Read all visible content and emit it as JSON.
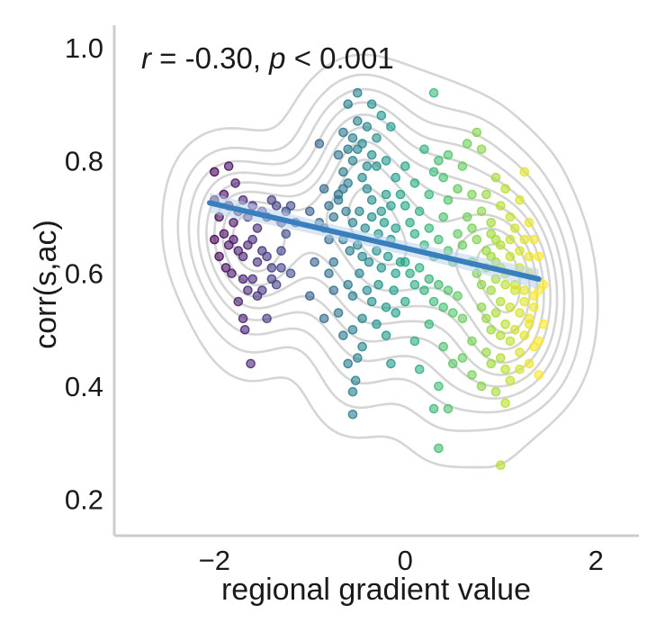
{
  "chart_data": {
    "type": "scatter",
    "xlabel": "regional gradient value",
    "ylabel": "corr(s,ac)",
    "xlim": [
      -3.05,
      2.45
    ],
    "ylim": [
      0.135,
      1.04
    ],
    "xticks": [
      -2,
      0,
      2
    ],
    "xtick_labels": [
      "−2",
      "0",
      "2"
    ],
    "yticks": [
      0.2,
      0.4,
      0.6,
      0.8,
      1.0
    ],
    "ytick_labels": [
      "0.2",
      "0.4",
      "0.6",
      "0.8",
      "1.0"
    ],
    "grid": false,
    "spines": [
      "left",
      "bottom"
    ],
    "annotation": {
      "r_symbol": "r",
      "r_text": " = -0.30, ",
      "p_symbol": "p",
      "p_text": " < 0.001"
    },
    "colormap": "viridis",
    "point_color_scale": [
      -2.0,
      1.4
    ],
    "point_alpha": 0.6,
    "regression_line": {
      "color": "#3a7fbd",
      "x": [
        -2.05,
        1.4
      ],
      "y": [
        0.725,
        0.59
      ],
      "ci_band_color": "#b9d3ec"
    },
    "kde_contour_color": "#d5d5d5",
    "points": [
      [
        -2.0,
        0.73
      ],
      [
        -1.95,
        0.7
      ],
      [
        -1.9,
        0.74
      ],
      [
        -1.85,
        0.72
      ],
      [
        -1.8,
        0.69
      ],
      [
        -1.75,
        0.71
      ],
      [
        -1.7,
        0.73
      ],
      [
        -1.65,
        0.7
      ],
      [
        -1.6,
        0.72
      ],
      [
        -1.55,
        0.68
      ],
      [
        -1.5,
        0.71
      ],
      [
        -1.45,
        0.7
      ],
      [
        -1.4,
        0.73
      ],
      [
        -1.35,
        0.72
      ],
      [
        -1.3,
        0.69
      ],
      [
        -1.25,
        0.71
      ],
      [
        -1.9,
        0.67
      ],
      [
        -1.85,
        0.65
      ],
      [
        -1.8,
        0.66
      ],
      [
        -1.75,
        0.64
      ],
      [
        -1.7,
        0.63
      ],
      [
        -1.65,
        0.65
      ],
      [
        -1.6,
        0.66
      ],
      [
        -1.55,
        0.62
      ],
      [
        -1.5,
        0.64
      ],
      [
        -1.45,
        0.63
      ],
      [
        -1.4,
        0.61
      ],
      [
        -1.95,
        0.63
      ],
      [
        -2.0,
        0.66
      ],
      [
        -1.88,
        0.61
      ],
      [
        -1.82,
        0.6
      ],
      [
        -1.7,
        0.59
      ],
      [
        -1.65,
        0.57
      ],
      [
        -1.6,
        0.59
      ],
      [
        -1.55,
        0.56
      ],
      [
        -1.75,
        0.55
      ],
      [
        -1.7,
        0.52
      ],
      [
        -1.68,
        0.5
      ],
      [
        -1.62,
        0.44
      ],
      [
        -1.45,
        0.52
      ],
      [
        -1.4,
        0.59
      ],
      [
        -1.3,
        0.61
      ],
      [
        -1.5,
        0.57
      ],
      [
        -2.0,
        0.78
      ],
      [
        -1.85,
        0.79
      ],
      [
        -1.78,
        0.76
      ],
      [
        -1.2,
        0.72
      ],
      [
        -1.15,
        0.69
      ],
      [
        -1.25,
        0.67
      ],
      [
        -1.35,
        0.58
      ],
      [
        -1.3,
        0.64
      ],
      [
        -1.2,
        0.6
      ],
      [
        -1.0,
        0.56
      ],
      [
        -0.95,
        0.62
      ],
      [
        -0.9,
        0.83
      ],
      [
        -0.85,
        0.68
      ],
      [
        -0.8,
        0.72
      ],
      [
        -0.75,
        0.7
      ],
      [
        -0.7,
        0.74
      ],
      [
        -0.65,
        0.78
      ],
      [
        -0.6,
        0.76
      ],
      [
        -0.55,
        0.8
      ],
      [
        -0.5,
        0.82
      ],
      [
        -0.45,
        0.77
      ],
      [
        -0.4,
        0.75
      ],
      [
        -0.35,
        0.73
      ],
      [
        -0.3,
        0.79
      ],
      [
        -0.25,
        0.71
      ],
      [
        -0.2,
        0.74
      ],
      [
        -0.15,
        0.72
      ],
      [
        -0.7,
        0.81
      ],
      [
        -0.65,
        0.85
      ],
      [
        -0.6,
        0.82
      ],
      [
        -0.55,
        0.84
      ],
      [
        -0.5,
        0.87
      ],
      [
        -0.45,
        0.83
      ],
      [
        -0.4,
        0.86
      ],
      [
        -0.35,
        0.81
      ],
      [
        -0.3,
        0.84
      ],
      [
        -0.25,
        0.88
      ],
      [
        -0.6,
        0.9
      ],
      [
        -0.5,
        0.92
      ],
      [
        -0.35,
        0.9
      ],
      [
        -0.15,
        0.86
      ],
      [
        -0.7,
        0.73
      ],
      [
        -0.62,
        0.71
      ],
      [
        -0.55,
        0.69
      ],
      [
        -0.48,
        0.71
      ],
      [
        -0.42,
        0.68
      ],
      [
        -0.35,
        0.7
      ],
      [
        -0.28,
        0.67
      ],
      [
        -0.22,
        0.69
      ],
      [
        -0.15,
        0.66
      ],
      [
        -0.1,
        0.68
      ],
      [
        -0.65,
        0.66
      ],
      [
        -0.58,
        0.64
      ],
      [
        -0.5,
        0.65
      ],
      [
        -0.45,
        0.63
      ],
      [
        -0.38,
        0.62
      ],
      [
        -0.3,
        0.64
      ],
      [
        -0.25,
        0.61
      ],
      [
        -0.18,
        0.63
      ],
      [
        -0.1,
        0.6
      ],
      [
        -0.05,
        0.62
      ],
      [
        -0.6,
        0.58
      ],
      [
        -0.55,
        0.56
      ],
      [
        -0.48,
        0.6
      ],
      [
        -0.4,
        0.57
      ],
      [
        -0.35,
        0.55
      ],
      [
        -0.28,
        0.58
      ],
      [
        -0.2,
        0.54
      ],
      [
        -0.12,
        0.57
      ],
      [
        -0.8,
        0.6
      ],
      [
        -0.75,
        0.57
      ],
      [
        -0.85,
        0.52
      ],
      [
        -0.7,
        0.53
      ],
      [
        -0.65,
        0.49
      ],
      [
        -0.55,
        0.5
      ],
      [
        -0.45,
        0.47
      ],
      [
        -0.5,
        0.45
      ],
      [
        -0.6,
        0.44
      ],
      [
        -0.52,
        0.41
      ],
      [
        -0.55,
        0.39
      ],
      [
        -0.45,
        0.52
      ],
      [
        -0.3,
        0.51
      ],
      [
        -0.2,
        0.49
      ],
      [
        -0.1,
        0.53
      ],
      [
        0.0,
        0.55
      ],
      [
        -0.15,
        0.44
      ],
      [
        -0.55,
        0.35
      ],
      [
        0.0,
        0.72
      ],
      [
        0.05,
        0.69
      ],
      [
        0.1,
        0.67
      ],
      [
        0.15,
        0.71
      ],
      [
        0.2,
        0.65
      ],
      [
        0.25,
        0.68
      ],
      [
        0.3,
        0.63
      ],
      [
        0.35,
        0.66
      ],
      [
        0.4,
        0.7
      ],
      [
        0.45,
        0.64
      ],
      [
        0.5,
        0.62
      ],
      [
        0.55,
        0.67
      ],
      [
        0.6,
        0.65
      ],
      [
        0.0,
        0.62
      ],
      [
        0.05,
        0.6
      ],
      [
        0.1,
        0.58
      ],
      [
        0.15,
        0.61
      ],
      [
        0.2,
        0.57
      ],
      [
        0.25,
        0.59
      ],
      [
        0.3,
        0.55
      ],
      [
        0.35,
        0.58
      ],
      [
        0.4,
        0.54
      ],
      [
        0.45,
        0.57
      ],
      [
        0.5,
        0.53
      ],
      [
        0.55,
        0.56
      ],
      [
        0.6,
        0.52
      ],
      [
        0.0,
        0.79
      ],
      [
        0.1,
        0.76
      ],
      [
        0.2,
        0.82
      ],
      [
        0.3,
        0.78
      ],
      [
        0.35,
        0.8
      ],
      [
        0.4,
        0.77
      ],
      [
        0.45,
        0.81
      ],
      [
        0.3,
        0.92
      ],
      [
        0.65,
        0.83
      ],
      [
        0.75,
        0.85
      ],
      [
        0.8,
        0.82
      ],
      [
        0.6,
        0.79
      ],
      [
        0.7,
        0.74
      ],
      [
        0.1,
        0.48
      ],
      [
        0.25,
        0.51
      ],
      [
        0.4,
        0.47
      ],
      [
        0.5,
        0.44
      ],
      [
        0.35,
        0.4
      ],
      [
        0.3,
        0.36
      ],
      [
        0.35,
        0.29
      ],
      [
        0.45,
        0.36
      ],
      [
        0.15,
        0.43
      ],
      [
        0.6,
        0.45
      ],
      [
        0.7,
        0.48
      ],
      [
        0.65,
        0.7
      ],
      [
        0.7,
        0.68
      ],
      [
        0.75,
        0.66
      ],
      [
        0.8,
        0.71
      ],
      [
        0.85,
        0.64
      ],
      [
        0.9,
        0.67
      ],
      [
        0.95,
        0.62
      ],
      [
        1.0,
        0.65
      ],
      [
        1.05,
        0.6
      ],
      [
        1.1,
        0.63
      ],
      [
        1.15,
        0.58
      ],
      [
        1.2,
        0.61
      ],
      [
        1.25,
        0.57
      ],
      [
        1.3,
        0.6
      ],
      [
        1.35,
        0.56
      ],
      [
        0.7,
        0.62
      ],
      [
        0.75,
        0.6
      ],
      [
        0.8,
        0.58
      ],
      [
        0.85,
        0.61
      ],
      [
        0.9,
        0.57
      ],
      [
        0.95,
        0.59
      ],
      [
        1.0,
        0.55
      ],
      [
        1.05,
        0.58
      ],
      [
        1.1,
        0.54
      ],
      [
        1.15,
        0.57
      ],
      [
        1.2,
        0.53
      ],
      [
        1.25,
        0.55
      ],
      [
        1.3,
        0.52
      ],
      [
        1.35,
        0.54
      ],
      [
        1.4,
        0.57
      ],
      [
        0.8,
        0.54
      ],
      [
        0.85,
        0.52
      ],
      [
        0.9,
        0.5
      ],
      [
        0.95,
        0.53
      ],
      [
        1.0,
        0.49
      ],
      [
        1.05,
        0.51
      ],
      [
        1.1,
        0.48
      ],
      [
        1.15,
        0.5
      ],
      [
        1.2,
        0.46
      ],
      [
        1.25,
        0.49
      ],
      [
        1.3,
        0.51
      ],
      [
        1.35,
        0.47
      ],
      [
        0.85,
        0.46
      ],
      [
        0.9,
        0.44
      ],
      [
        1.0,
        0.45
      ],
      [
        1.05,
        0.43
      ],
      [
        1.1,
        0.41
      ],
      [
        1.2,
        0.43
      ],
      [
        1.3,
        0.44
      ],
      [
        0.8,
        0.4
      ],
      [
        0.95,
        0.39
      ],
      [
        1.05,
        0.37
      ],
      [
        1.4,
        0.42
      ],
      [
        0.7,
        0.42
      ],
      [
        1.0,
        0.26
      ],
      [
        0.9,
        0.69
      ],
      [
        1.0,
        0.72
      ],
      [
        1.1,
        0.7
      ],
      [
        1.2,
        0.73
      ],
      [
        1.3,
        0.69
      ],
      [
        0.85,
        0.74
      ],
      [
        0.95,
        0.77
      ],
      [
        1.05,
        0.75
      ],
      [
        1.25,
        0.78
      ],
      [
        1.35,
        0.66
      ],
      [
        1.4,
        0.63
      ],
      [
        1.45,
        0.58
      ],
      [
        1.45,
        0.51
      ],
      [
        1.4,
        0.48
      ],
      [
        0.55,
        0.75
      ],
      [
        0.45,
        0.73
      ],
      [
        0.25,
        0.74
      ],
      [
        0.9,
        0.63
      ],
      [
        1.0,
        0.61
      ],
      [
        1.1,
        0.66
      ],
      [
        1.2,
        0.64
      ],
      [
        1.3,
        0.63
      ],
      [
        0.95,
        0.66
      ],
      [
        1.15,
        0.68
      ],
      [
        1.25,
        0.66
      ],
      [
        -0.8,
        0.66
      ],
      [
        -0.9,
        0.69
      ],
      [
        -1.0,
        0.71
      ],
      [
        -0.75,
        0.62
      ],
      [
        -0.85,
        0.75
      ],
      [
        -0.65,
        0.75
      ],
      [
        -0.4,
        0.79
      ],
      [
        -0.2,
        0.8
      ],
      [
        -0.1,
        0.77
      ],
      [
        -0.05,
        0.74
      ]
    ]
  }
}
